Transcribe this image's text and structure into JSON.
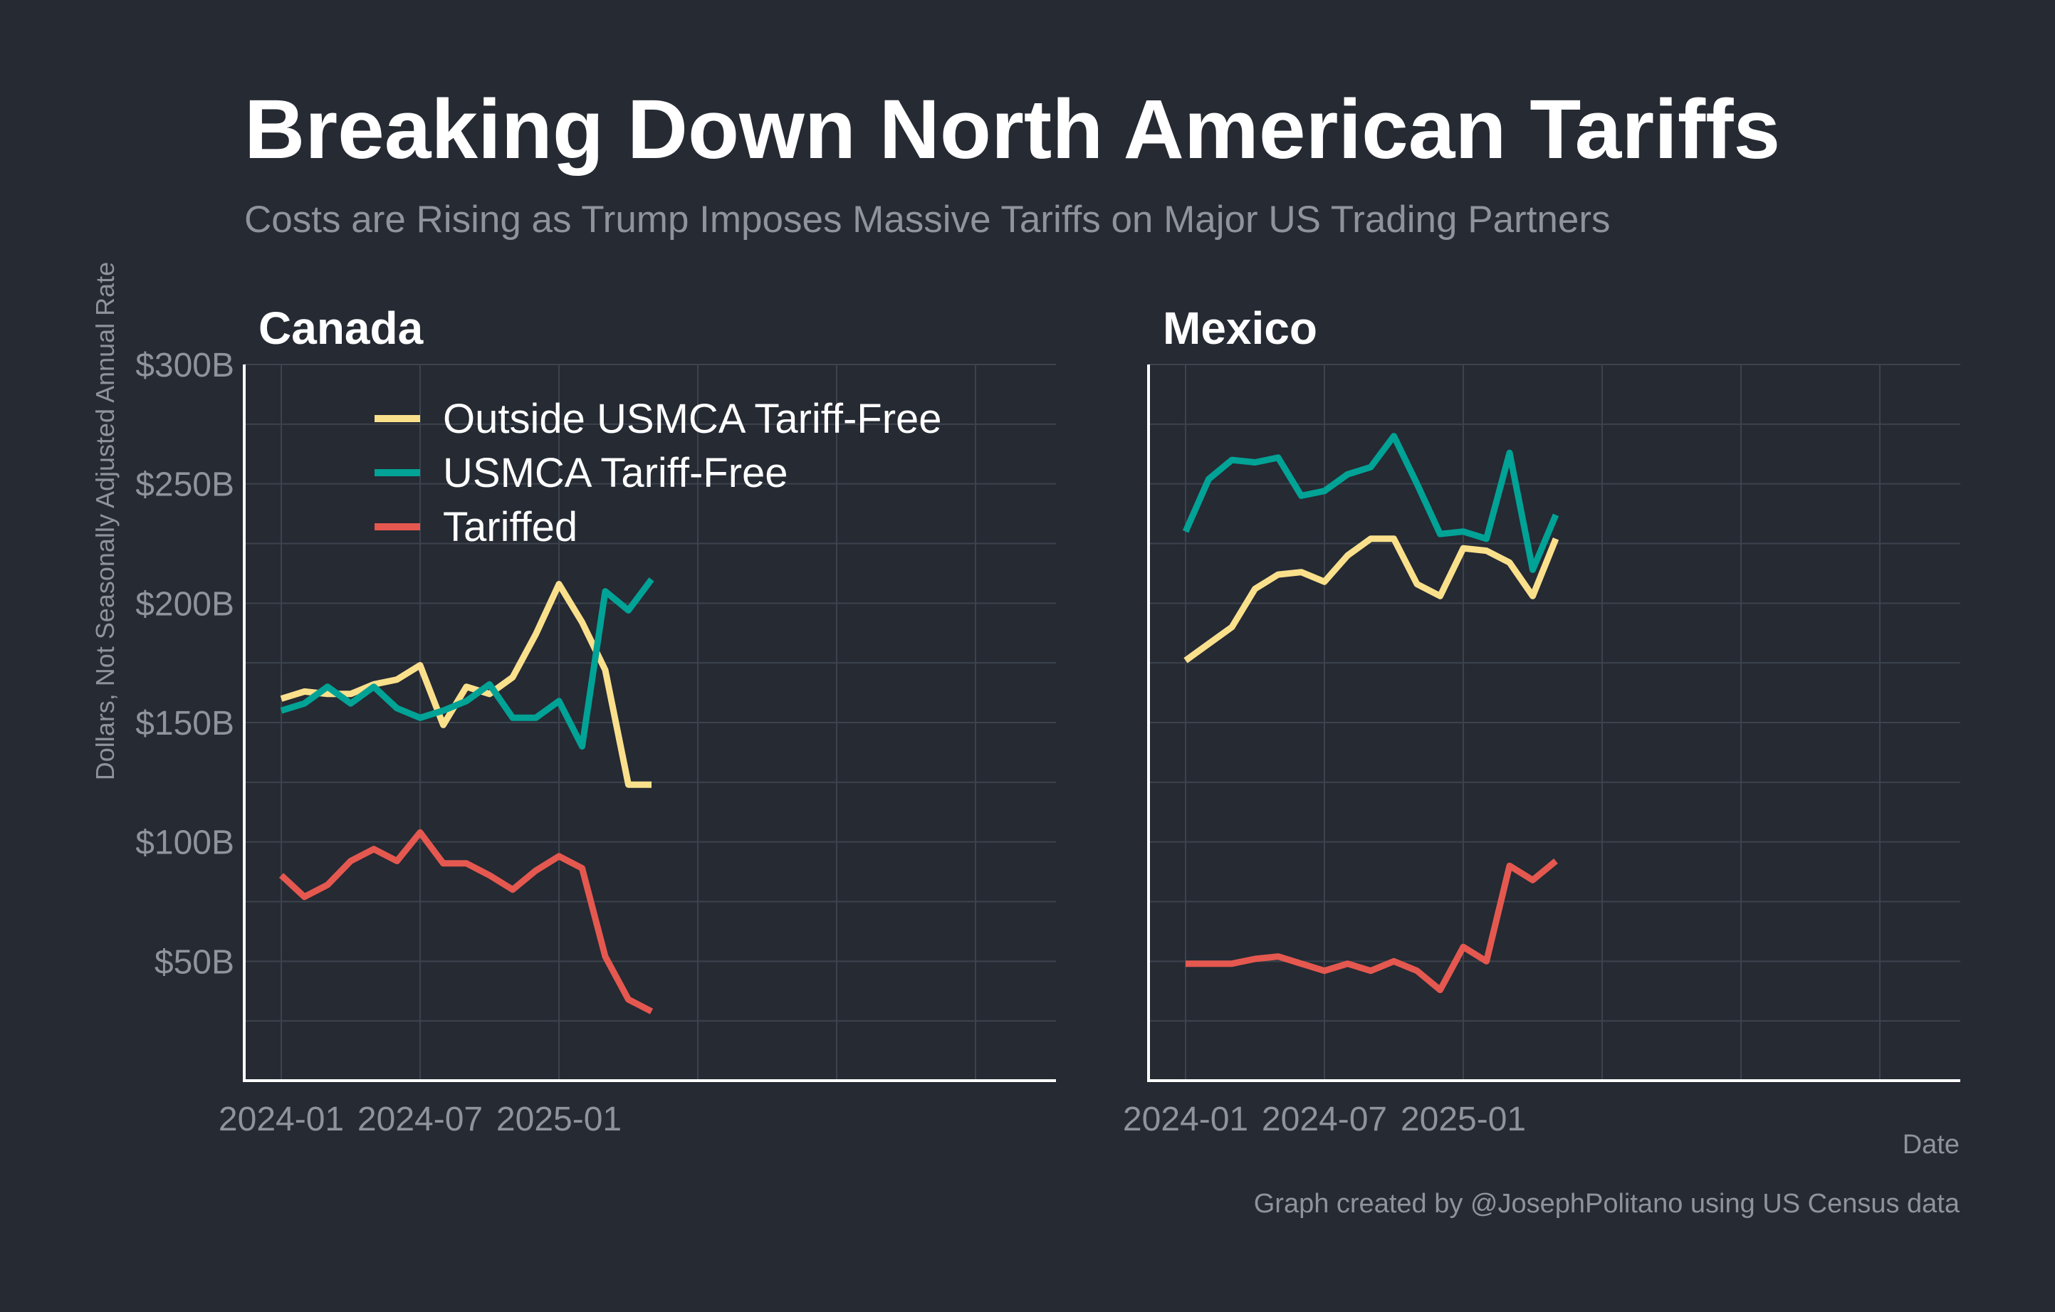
{
  "title": "Breaking Down North American Tariffs",
  "subtitle": "Costs are Rising as Trump Imposes Massive Tariffs on Major US Trading Partners",
  "ylabel": "Dollars, Not Seasonally Adjusted Annual Rate",
  "xlabel": "Date",
  "caption": "Graph created by @JosephPolitano using US Census data",
  "colors": {
    "background": "#252a33",
    "grid": "#3d434d",
    "axis": "#ffffff",
    "tick_text": "#8f939b",
    "title": "#ffffff",
    "subtitle": "#8f939b"
  },
  "legend": {
    "placement": "top-left of first panel",
    "items": [
      {
        "label": "Outside USMCA Tariff-Free",
        "color": "#fbe08c"
      },
      {
        "label": "USMCA Tariff-Free",
        "color": "#00a396"
      },
      {
        "label": "Tariffed",
        "color": "#e5584f"
      }
    ]
  },
  "chart_data": [
    {
      "type": "line",
      "title": "Canada",
      "ylabel": "Dollars, Not Seasonally Adjusted Annual Rate",
      "xlabel": "",
      "x": [
        "2024-01",
        "2024-02",
        "2024-03",
        "2024-04",
        "2024-05",
        "2024-06",
        "2024-07",
        "2024-08",
        "2024-09",
        "2024-10",
        "2024-11",
        "2024-12",
        "2025-01",
        "2025-02",
        "2025-03",
        "2025-04",
        "2025-05"
      ],
      "x_ticks": [
        "2024-01",
        "2024-07",
        "2025-01"
      ],
      "y_ticks": [
        50,
        100,
        150,
        200,
        250,
        300
      ],
      "y_tick_labels": [
        "$50B",
        "$100B",
        "$150B",
        "$200B",
        "$250B",
        "$300B"
      ],
      "ylim": [
        0,
        300
      ],
      "grid": true,
      "series": [
        {
          "name": "Outside USMCA Tariff-Free",
          "color": "#fbe08c",
          "values": [
            160,
            163,
            162,
            162,
            166,
            168,
            174,
            149,
            165,
            162,
            169,
            187,
            208,
            192,
            172,
            124,
            124
          ]
        },
        {
          "name": "USMCA Tariff-Free",
          "color": "#00a396",
          "values": [
            155,
            158,
            165,
            158,
            165,
            156,
            152,
            155,
            159,
            166,
            152,
            152,
            159,
            140,
            205,
            197,
            210
          ]
        },
        {
          "name": "Tariffed",
          "color": "#e5584f",
          "values": [
            86,
            77,
            82,
            92,
            97,
            92,
            104,
            91,
            91,
            86,
            80,
            88,
            94,
            89,
            52,
            34,
            29
          ]
        }
      ]
    },
    {
      "type": "line",
      "title": "Mexico",
      "ylabel": "",
      "xlabel": "Date",
      "x": [
        "2024-01",
        "2024-02",
        "2024-03",
        "2024-04",
        "2024-05",
        "2024-06",
        "2024-07",
        "2024-08",
        "2024-09",
        "2024-10",
        "2024-11",
        "2024-12",
        "2025-01",
        "2025-02",
        "2025-03",
        "2025-04",
        "2025-05"
      ],
      "x_ticks": [
        "2024-01",
        "2024-07",
        "2025-01"
      ],
      "y_ticks": [
        50,
        100,
        150,
        200,
        250,
        300
      ],
      "y_tick_labels": [],
      "ylim": [
        0,
        300
      ],
      "grid": true,
      "series": [
        {
          "name": "Outside USMCA Tariff-Free",
          "color": "#fbe08c",
          "values": [
            176,
            183,
            190,
            206,
            212,
            213,
            209,
            220,
            227,
            227,
            208,
            203,
            223,
            222,
            217,
            203,
            227
          ]
        },
        {
          "name": "USMCA Tariff-Free",
          "color": "#00a396",
          "values": [
            230,
            252,
            260,
            259,
            261,
            245,
            247,
            254,
            257,
            270,
            250,
            229,
            230,
            227,
            263,
            214,
            237
          ]
        },
        {
          "name": "Tariffed",
          "color": "#e5584f",
          "values": [
            49,
            49,
            49,
            51,
            52,
            49,
            46,
            49,
            46,
            50,
            46,
            38,
            56,
            50,
            90,
            84,
            92
          ]
        }
      ]
    }
  ]
}
